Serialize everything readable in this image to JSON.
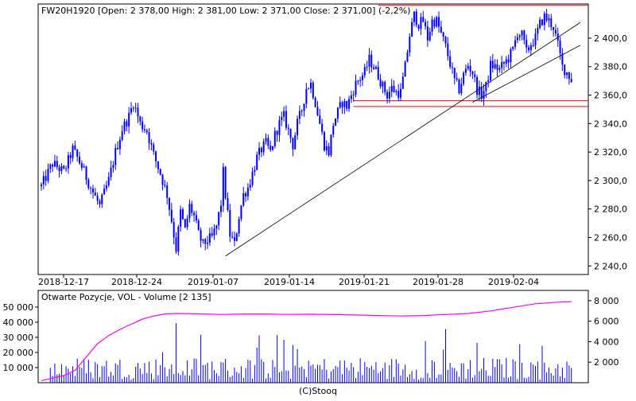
{
  "chart_data": [
    {
      "type": "candlestick",
      "title": "FW20H1920 [Open: 2 378,00  High: 2 381,00  Low: 2 371,00  Close: 2 371,00] (-2,2%)",
      "instrument": "FW20H1920",
      "last_bar": {
        "open": 2378.0,
        "high": 2381.0,
        "low": 2371.0,
        "close": 2371.0,
        "change_pct": -2.2
      },
      "x_labels": [
        "2018-12-17",
        "2018-12-24",
        "2019-01-07",
        "2019-01-14",
        "2019-01-21",
        "2019-01-28",
        "2019-02-04"
      ],
      "y_ticks": [
        2240,
        2260,
        2280,
        2300,
        2320,
        2340,
        2360,
        2380,
        2400
      ],
      "y_tick_labels": [
        "2 240,0",
        "2 260,0",
        "2 280,0",
        "2 300,0",
        "2 320,0",
        "2 340,0",
        "2 360,0",
        "2 380,0",
        "2 400,0"
      ],
      "ylim": [
        2234,
        2424
      ],
      "series_color": "#0000ff",
      "price_path": [
        [
          0,
          2296
        ],
        [
          5,
          2312
        ],
        [
          10,
          2306
        ],
        [
          14,
          2322
        ],
        [
          18,
          2310
        ],
        [
          22,
          2295
        ],
        [
          26,
          2282
        ],
        [
          30,
          2300
        ],
        [
          33,
          2320
        ],
        [
          36,
          2336
        ],
        [
          39,
          2345
        ],
        [
          41,
          2355
        ],
        [
          44,
          2340
        ],
        [
          47,
          2335
        ],
        [
          50,
          2318
        ],
        [
          53,
          2305
        ],
        [
          56,
          2290
        ],
        [
          58,
          2272
        ],
        [
          60,
          2252
        ],
        [
          62,
          2278
        ],
        [
          64,
          2265
        ],
        [
          66,
          2282
        ],
        [
          68,
          2275
        ],
        [
          70,
          2262
        ],
        [
          72,
          2255
        ],
        [
          74,
          2258
        ],
        [
          76,
          2260
        ],
        [
          78,
          2268
        ],
        [
          80,
          2284
        ],
        [
          81,
          2306
        ],
        [
          82,
          2290
        ],
        [
          84,
          2262
        ],
        [
          86,
          2255
        ],
        [
          88,
          2275
        ],
        [
          90,
          2290
        ],
        [
          92,
          2295
        ],
        [
          94,
          2305
        ],
        [
          96,
          2316
        ],
        [
          98,
          2322
        ],
        [
          100,
          2326
        ],
        [
          102,
          2320
        ],
        [
          104,
          2332
        ],
        [
          106,
          2340
        ],
        [
          108,
          2345
        ],
        [
          110,
          2335
        ],
        [
          112,
          2325
        ],
        [
          114,
          2340
        ],
        [
          116,
          2350
        ],
        [
          118,
          2365
        ],
        [
          120,
          2368
        ],
        [
          122,
          2355
        ],
        [
          124,
          2340
        ],
        [
          126,
          2325
        ],
        [
          128,
          2320
        ],
        [
          130,
          2340
        ],
        [
          132,
          2348
        ],
        [
          134,
          2355
        ],
        [
          136,
          2352
        ],
        [
          138,
          2360
        ],
        [
          140,
          2368
        ],
        [
          142,
          2372
        ],
        [
          144,
          2376
        ],
        [
          146,
          2385
        ],
        [
          148,
          2380
        ],
        [
          150,
          2374
        ],
        [
          152,
          2366
        ],
        [
          154,
          2360
        ],
        [
          156,
          2365
        ],
        [
          158,
          2362
        ],
        [
          160,
          2362
        ],
        [
          162,
          2380
        ],
        [
          164,
          2402
        ],
        [
          166,
          2416
        ],
        [
          168,
          2410
        ],
        [
          170,
          2412
        ],
        [
          172,
          2400
        ],
        [
          174,
          2412
        ],
        [
          176,
          2412
        ],
        [
          178,
          2403
        ],
        [
          180,
          2394
        ],
        [
          182,
          2382
        ],
        [
          184,
          2370
        ],
        [
          186,
          2364
        ],
        [
          188,
          2374
        ],
        [
          190,
          2381
        ],
        [
          192,
          2376
        ],
        [
          194,
          2364
        ],
        [
          196,
          2360
        ],
        [
          198,
          2366
        ],
        [
          200,
          2381
        ],
        [
          202,
          2380
        ],
        [
          204,
          2378
        ],
        [
          206,
          2382
        ],
        [
          208,
          2386
        ],
        [
          210,
          2392
        ],
        [
          212,
          2404
        ],
        [
          214,
          2402
        ],
        [
          216,
          2390
        ],
        [
          218,
          2396
        ],
        [
          220,
          2400
        ],
        [
          222,
          2410
        ],
        [
          224,
          2415
        ],
        [
          226,
          2412
        ],
        [
          228,
          2408
        ],
        [
          230,
          2395
        ],
        [
          232,
          2380
        ],
        [
          234,
          2376
        ],
        [
          236,
          2371
        ]
      ],
      "resistance_level": 2423,
      "support_levels": [
        2356,
        2352
      ],
      "trendlines": [
        {
          "from": [
            82,
            2247
          ],
          "to": [
            240,
            2411
          ]
        },
        {
          "from": [
            192,
            2355
          ],
          "to": [
            240,
            2395
          ]
        }
      ]
    },
    {
      "type": "bar+line",
      "title": "Otwarte Pozycje, VOL - Volume [2 135]",
      "volume_last": 2135,
      "left_axis_ticks": [
        10000,
        20000,
        30000,
        40000,
        50000
      ],
      "left_axis_labels": [
        "10 000",
        "20 000",
        "30 000",
        "40 000",
        "50 000"
      ],
      "left_ylim": [
        0,
        61000
      ],
      "right_axis_ticks": [
        2000,
        4000,
        6000,
        8000
      ],
      "right_axis_labels": [
        "2 000",
        "4 000",
        "6 000",
        "8 000"
      ],
      "right_ylim": [
        0,
        9000
      ],
      "open_interest_color": "#ff00ff",
      "volume_color": "#0000ff",
      "open_interest": [
        [
          0,
          200
        ],
        [
          10,
          700
        ],
        [
          15,
          1200
        ],
        [
          20,
          2500
        ],
        [
          25,
          3800
        ],
        [
          30,
          4600
        ],
        [
          35,
          5200
        ],
        [
          40,
          5700
        ],
        [
          45,
          6200
        ],
        [
          50,
          6500
        ],
        [
          55,
          6700
        ],
        [
          60,
          6750
        ],
        [
          70,
          6720
        ],
        [
          80,
          6650
        ],
        [
          90,
          6700
        ],
        [
          100,
          6700
        ],
        [
          110,
          6660
        ],
        [
          120,
          6680
        ],
        [
          130,
          6640
        ],
        [
          140,
          6600
        ],
        [
          150,
          6550
        ],
        [
          160,
          6500
        ],
        [
          170,
          6550
        ],
        [
          180,
          6650
        ],
        [
          190,
          6750
        ],
        [
          200,
          7000
        ],
        [
          210,
          7350
        ],
        [
          220,
          7700
        ],
        [
          230,
          7850
        ],
        [
          236,
          7900
        ]
      ]
    }
  ],
  "footer": "(C)Stooq"
}
